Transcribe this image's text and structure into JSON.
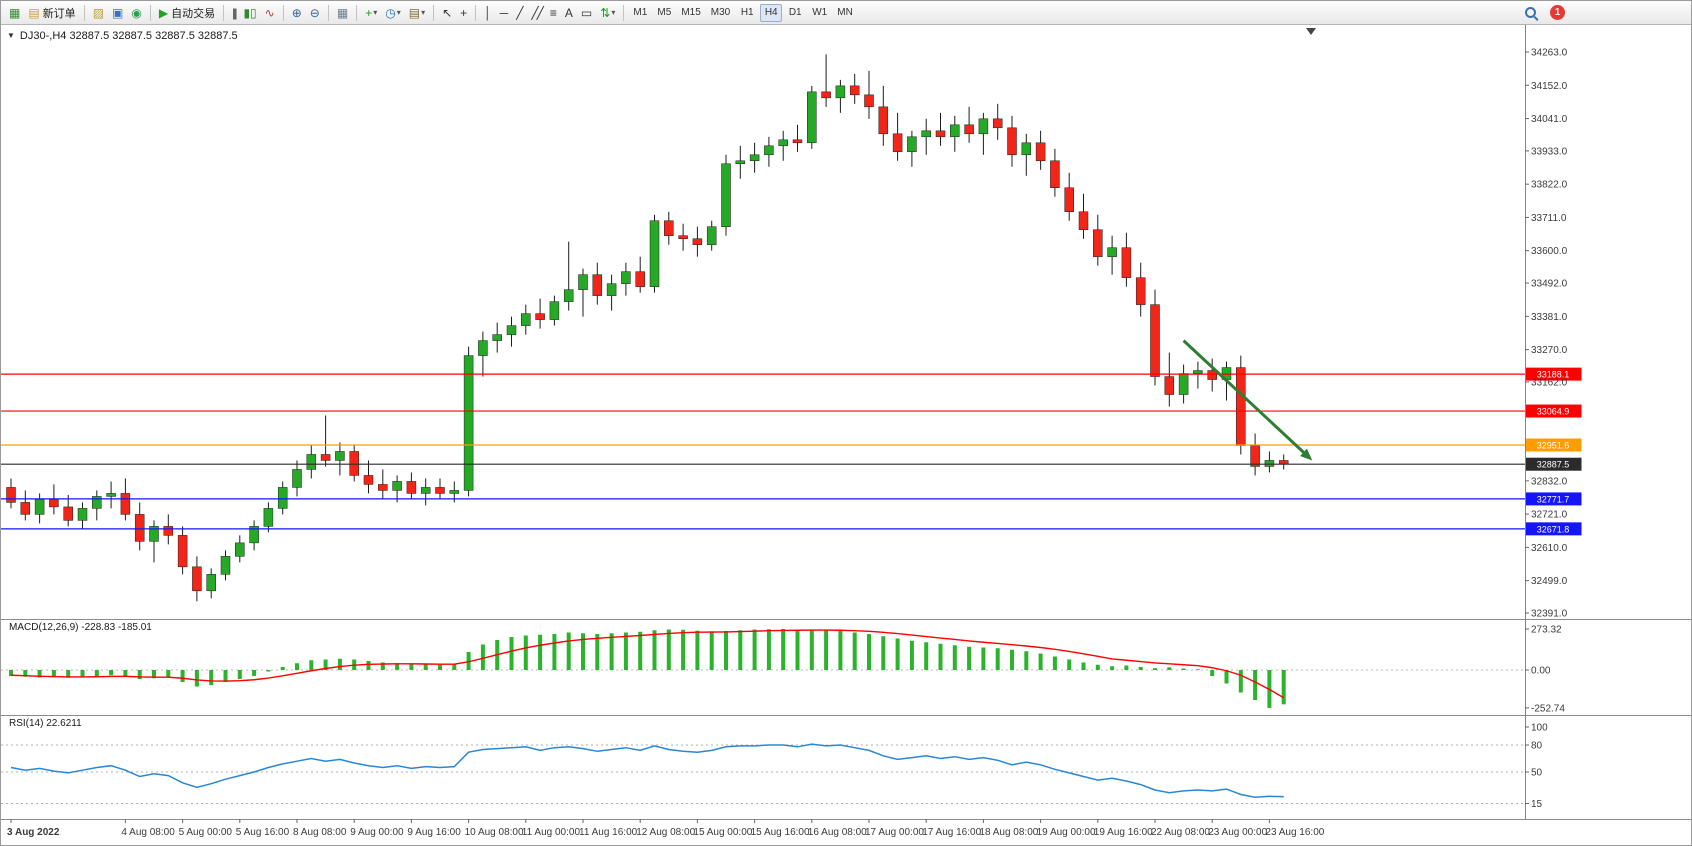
{
  "window": {
    "chart_title": "DJ30-,H4 32887.5 32887.5 32887.5 32887.5"
  },
  "toolbar": {
    "groups": [
      {
        "buttons": [
          {
            "name": "new-chart-button",
            "icon": "chart-plus-icon"
          },
          {
            "name": "new-order-button",
            "icon": "order-doc-icon",
            "label": "新订单"
          }
        ]
      },
      {
        "buttons": [
          {
            "name": "metaeditor-button",
            "icon": "editor-icon"
          },
          {
            "name": "profiles-button",
            "icon": "layers-icon"
          },
          {
            "name": "refresh-button",
            "icon": "refresh-icon"
          }
        ]
      },
      {
        "buttons": [
          {
            "name": "autotrading-button",
            "icon": "play-icon",
            "label": "自动交易"
          }
        ]
      },
      {
        "buttons": [
          {
            "name": "bar-chart-button",
            "icon": "bars-icon"
          },
          {
            "name": "candlestick-button",
            "icon": "candles-icon"
          },
          {
            "name": "line-chart-button",
            "icon": "line-icon"
          }
        ]
      },
      {
        "buttons": [
          {
            "name": "zoom-in-button",
            "icon": "zoom-in-icon"
          },
          {
            "name": "zoom-out-button",
            "icon": "zoom-out-icon"
          }
        ]
      },
      {
        "buttons": [
          {
            "name": "tile-windows-button",
            "icon": "tile-icon"
          }
        ]
      },
      {
        "buttons": [
          {
            "name": "indicators-button",
            "icon": "indicator-plus-icon",
            "dropdown": true
          },
          {
            "name": "periods-button",
            "icon": "clock-icon",
            "dropdown": true
          },
          {
            "name": "templates-button",
            "icon": "template-icon",
            "dropdown": true
          }
        ]
      },
      {
        "buttons": [
          {
            "name": "cursor-button",
            "icon": "cursor-icon"
          },
          {
            "name": "crosshair-button",
            "icon": "crosshair-icon"
          }
        ]
      },
      {
        "buttons": [
          {
            "name": "vertical-line-button",
            "icon": "vertical-line-icon"
          },
          {
            "name": "horizontal-line-button",
            "icon": "horizontal-line-icon"
          },
          {
            "name": "trendline-button",
            "icon": "trendline-icon"
          },
          {
            "name": "channel-button",
            "icon": "channel-icon"
          },
          {
            "name": "fibonacci-button",
            "icon": "fibonacci-icon"
          },
          {
            "name": "text-button",
            "icon": "text-icon"
          },
          {
            "name": "label-button",
            "icon": "label-icon"
          },
          {
            "name": "shapes-button",
            "icon": "shapes-icon",
            "dropdown": true
          }
        ]
      }
    ],
    "timeframes": {
      "options": [
        "M1",
        "M5",
        "M15",
        "M30",
        "H1",
        "H4",
        "D1",
        "W1",
        "MN"
      ],
      "active": "H4"
    },
    "right": {
      "notification_count": "1"
    }
  },
  "chart_data": {
    "type": "candlestick",
    "symbol": "DJ30-",
    "timeframe": "H4",
    "price_range": {
      "min": 32391,
      "max": 34263
    },
    "colors": {
      "up": "#26a926",
      "down": "#f22618",
      "wick": "#1c1c1c",
      "macd_histogram": "#2bb32b",
      "macd_signal": "#ff0000",
      "rsi_line": "#2787d7"
    },
    "price_axis_ticks": [
      "34263.0",
      "34152.0",
      "34041.0",
      "33933.0",
      "33822.0",
      "33711.0",
      "33600.0",
      "33492.0",
      "33381.0",
      "33270.0",
      "33162.0",
      "32832.0",
      "32721.0",
      "32610.0",
      "32499.0",
      "32391.0"
    ],
    "time_labels": [
      "3 Aug 2022",
      "4 Aug 08:00",
      "5 Aug 00:00",
      "5 Aug 16:00",
      "8 Aug 08:00",
      "9 Aug 00:00",
      "9 Aug 16:00",
      "10 Aug 08:00",
      "11 Aug 00:00",
      "11 Aug 16:00",
      "12 Aug 08:00",
      "15 Aug 00:00",
      "15 Aug 16:00",
      "16 Aug 08:00",
      "17 Aug 00:00",
      "17 Aug 16:00",
      "18 Aug 08:00",
      "19 Aug 00:00",
      "19 Aug 16:00",
      "22 Aug 08:00",
      "23 Aug 00:00",
      "23 Aug 16:00"
    ],
    "label_candle_indices": [
      0,
      8,
      12,
      16,
      20,
      24,
      28,
      32,
      36,
      40,
      44,
      48,
      52,
      56,
      60,
      64,
      68,
      72,
      76,
      80,
      84,
      88
    ],
    "candles": [
      [
        32810,
        32840,
        32740,
        32760
      ],
      [
        32760,
        32800,
        32700,
        32720
      ],
      [
        32720,
        32790,
        32690,
        32770
      ],
      [
        32770,
        32820,
        32720,
        32745
      ],
      [
        32745,
        32785,
        32680,
        32700
      ],
      [
        32700,
        32760,
        32670,
        32740
      ],
      [
        32740,
        32800,
        32700,
        32780
      ],
      [
        32780,
        32830,
        32740,
        32790
      ],
      [
        32790,
        32840,
        32700,
        32720
      ],
      [
        32720,
        32760,
        32600,
        32630
      ],
      [
        32630,
        32700,
        32560,
        32680
      ],
      [
        32680,
        32720,
        32620,
        32650
      ],
      [
        32650,
        32680,
        32520,
        32545
      ],
      [
        32545,
        32580,
        32430,
        32465
      ],
      [
        32465,
        32540,
        32440,
        32520
      ],
      [
        32520,
        32600,
        32500,
        32580
      ],
      [
        32580,
        32650,
        32560,
        32625
      ],
      [
        32625,
        32700,
        32600,
        32680
      ],
      [
        32680,
        32760,
        32660,
        32740
      ],
      [
        32740,
        32830,
        32720,
        32810
      ],
      [
        32810,
        32900,
        32780,
        32870
      ],
      [
        32870,
        32950,
        32840,
        32920
      ],
      [
        32920,
        33050,
        32880,
        32900
      ],
      [
        32900,
        32960,
        32850,
        32930
      ],
      [
        32930,
        32950,
        32830,
        32850
      ],
      [
        32850,
        32900,
        32790,
        32820
      ],
      [
        32820,
        32870,
        32770,
        32800
      ],
      [
        32800,
        32850,
        32760,
        32830
      ],
      [
        32830,
        32860,
        32770,
        32790
      ],
      [
        32790,
        32840,
        32750,
        32810
      ],
      [
        32810,
        32840,
        32770,
        32790
      ],
      [
        32790,
        32830,
        32760,
        32800
      ],
      [
        32800,
        33280,
        32780,
        33250
      ],
      [
        33250,
        33330,
        33180,
        33300
      ],
      [
        33300,
        33360,
        33260,
        33320
      ],
      [
        33320,
        33380,
        33280,
        33350
      ],
      [
        33350,
        33420,
        33320,
        33390
      ],
      [
        33390,
        33440,
        33340,
        33370
      ],
      [
        33370,
        33450,
        33350,
        33430
      ],
      [
        33430,
        33630,
        33400,
        33470
      ],
      [
        33470,
        33540,
        33380,
        33520
      ],
      [
        33520,
        33560,
        33420,
        33450
      ],
      [
        33450,
        33520,
        33400,
        33490
      ],
      [
        33490,
        33560,
        33450,
        33530
      ],
      [
        33530,
        33580,
        33460,
        33480
      ],
      [
        33480,
        33720,
        33460,
        33700
      ],
      [
        33700,
        33730,
        33620,
        33650
      ],
      [
        33650,
        33690,
        33600,
        33640
      ],
      [
        33640,
        33680,
        33580,
        33620
      ],
      [
        33620,
        33700,
        33600,
        33680
      ],
      [
        33680,
        33920,
        33650,
        33890
      ],
      [
        33890,
        33950,
        33840,
        33900
      ],
      [
        33900,
        33960,
        33860,
        33920
      ],
      [
        33920,
        33980,
        33880,
        33950
      ],
      [
        33950,
        34000,
        33900,
        33970
      ],
      [
        33970,
        34020,
        33930,
        33960
      ],
      [
        33960,
        34150,
        33940,
        34130
      ],
      [
        34130,
        34255,
        34080,
        34110
      ],
      [
        34110,
        34170,
        34060,
        34150
      ],
      [
        34150,
        34190,
        34090,
        34120
      ],
      [
        34120,
        34200,
        34040,
        34080
      ],
      [
        34080,
        34150,
        33950,
        33990
      ],
      [
        33990,
        34060,
        33900,
        33930
      ],
      [
        33930,
        34000,
        33880,
        33980
      ],
      [
        33980,
        34040,
        33920,
        34000
      ],
      [
        34000,
        34060,
        33950,
        33980
      ],
      [
        33980,
        34050,
        33930,
        34020
      ],
      [
        34020,
        34080,
        33960,
        33990
      ],
      [
        33990,
        34060,
        33920,
        34040
      ],
      [
        34040,
        34090,
        33970,
        34010
      ],
      [
        34010,
        34050,
        33880,
        33920
      ],
      [
        33920,
        33990,
        33850,
        33960
      ],
      [
        33960,
        34000,
        33870,
        33900
      ],
      [
        33900,
        33940,
        33780,
        33810
      ],
      [
        33810,
        33860,
        33700,
        33730
      ],
      [
        33730,
        33790,
        33640,
        33670
      ],
      [
        33670,
        33720,
        33550,
        33580
      ],
      [
        33580,
        33650,
        33520,
        33610
      ],
      [
        33610,
        33660,
        33480,
        33510
      ],
      [
        33510,
        33560,
        33380,
        33420
      ],
      [
        33420,
        33470,
        33150,
        33180
      ],
      [
        33180,
        33260,
        33080,
        33120
      ],
      [
        33120,
        33220,
        33090,
        33190
      ],
      [
        33190,
        33230,
        33140,
        33200
      ],
      [
        33200,
        33240,
        33130,
        33170
      ],
      [
        33170,
        33230,
        33100,
        33210
      ],
      [
        33210,
        33250,
        32920,
        32950
      ],
      [
        32950,
        32990,
        32850,
        32880
      ],
      [
        32880,
        32930,
        32860,
        32900
      ],
      [
        32900,
        32920,
        32870,
        32887.5
      ]
    ],
    "hlines": [
      {
        "price": 33188.1,
        "color": "#ff0000",
        "label": "33188.1"
      },
      {
        "price": 33064.9,
        "color": "#ff0000",
        "label": "33064.9"
      },
      {
        "price": 32951.6,
        "color": "#ff9d00",
        "label": "32951.6"
      },
      {
        "price": 32887.5,
        "color": "#2b2b2b",
        "label": "32887.5"
      },
      {
        "price": 32771.7,
        "color": "#1414ff",
        "label": "32771.7"
      },
      {
        "price": 32671.8,
        "color": "#1414ff",
        "label": "32671.8"
      }
    ],
    "arrow": {
      "from_candle": 82,
      "from_price": 33300,
      "to_candle": 91,
      "to_price": 32900,
      "color": "#2e7d32"
    },
    "macd": {
      "label": "MACD(12,26,9) -228.83 -185.01",
      "axis": [
        "273.32",
        "0.00",
        "-252.74"
      ],
      "histogram": [
        -40,
        -45,
        -50,
        -48,
        -52,
        -45,
        -40,
        -35,
        -42,
        -60,
        -55,
        -50,
        -80,
        -110,
        -100,
        -80,
        -60,
        -40,
        -10,
        20,
        45,
        65,
        70,
        75,
        70,
        60,
        50,
        45,
        40,
        38,
        35,
        40,
        120,
        170,
        200,
        220,
        230,
        235,
        240,
        250,
        245,
        240,
        245,
        250,
        255,
        265,
        270,
        268,
        262,
        258,
        260,
        265,
        270,
        272,
        273.32,
        270,
        268,
        265,
        260,
        250,
        240,
        225,
        210,
        195,
        185,
        175,
        165,
        155,
        150,
        145,
        135,
        125,
        110,
        90,
        70,
        50,
        35,
        25,
        30,
        20,
        12,
        18,
        10,
        5,
        -40,
        -90,
        -150,
        -200,
        -252.74,
        -228.83
      ],
      "signal": [
        -35,
        -38,
        -42,
        -44,
        -46,
        -46,
        -45,
        -43,
        -42,
        -46,
        -48,
        -48,
        -55,
        -66,
        -73,
        -74,
        -71,
        -65,
        -54,
        -39,
        -22,
        -5,
        10,
        23,
        32,
        38,
        40,
        41,
        41,
        40,
        39,
        39,
        55,
        78,
        102,
        126,
        147,
        165,
        180,
        194,
        204,
        211,
        218,
        224,
        230,
        237,
        244,
        249,
        252,
        253,
        254,
        256,
        259,
        262,
        264,
        265,
        266,
        266,
        265,
        262,
        258,
        251,
        243,
        233,
        223,
        213,
        204,
        194,
        185,
        177,
        169,
        160,
        150,
        138,
        124,
        108,
        91,
        74,
        65,
        56,
        47,
        41,
        35,
        29,
        15,
        -5,
        -35,
        -80,
        -130,
        -185.01
      ]
    },
    "rsi": {
      "label": "RSI(14) 22.6211",
      "axis": [
        "100",
        "80",
        "50",
        "15"
      ],
      "levels": [
        80,
        50,
        15
      ],
      "values": [
        55,
        52,
        54,
        51,
        49,
        52,
        55,
        57,
        52,
        45,
        48,
        46,
        38,
        33,
        37,
        42,
        46,
        50,
        55,
        59,
        62,
        65,
        62,
        64,
        60,
        57,
        55,
        57,
        54,
        56,
        55,
        56,
        72,
        75,
        76,
        77,
        78,
        74,
        77,
        78,
        76,
        73,
        75,
        77,
        74,
        79,
        75,
        73,
        72,
        74,
        78,
        79,
        79,
        80,
        80,
        78,
        81,
        79,
        80,
        77,
        74,
        68,
        64,
        66,
        68,
        65,
        67,
        64,
        66,
        63,
        58,
        61,
        58,
        53,
        49,
        45,
        41,
        43,
        40,
        36,
        30,
        27,
        29,
        30,
        29,
        31,
        25,
        22,
        23,
        22.62
      ]
    }
  }
}
